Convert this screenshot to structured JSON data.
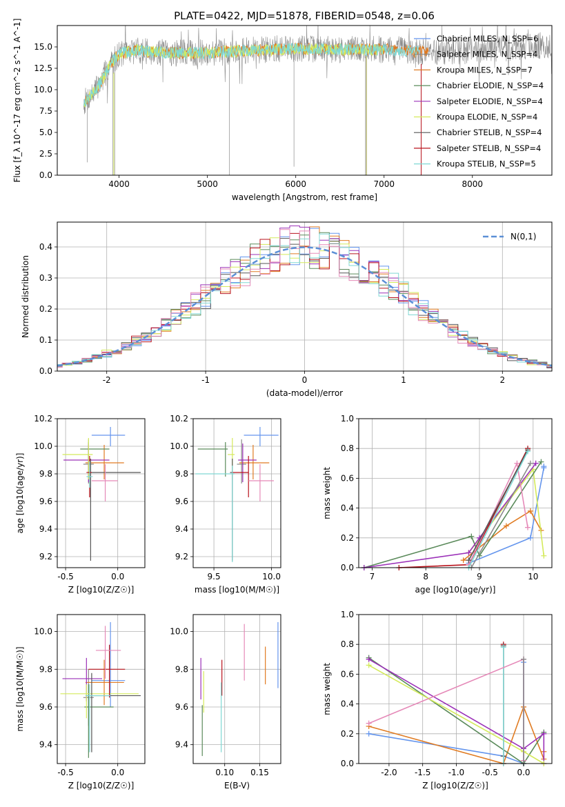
{
  "figure_title": "PLATE=0422, MJD=51878, FIBERID=0548, z=0.06",
  "colors": {
    "chabrier_miles": "#6495ed",
    "salpeter_miles": "#8a8a8a",
    "kroupa_miles": "#e07b22",
    "chabrier_elodie": "#5a8a5a",
    "salpeter_elodie": "#9b30b8",
    "kroupa_elodie": "#d4ea5a",
    "chabrier_stelib": "#555555",
    "salpeter_stelib": "#b8121b",
    "kroupa_stelib": "#7fd8d4",
    "pink": "#e589b8",
    "normal_curve": "#5b8fd6",
    "grid": "#b0b0b0"
  },
  "chart_data": [
    {
      "id": "spectrum",
      "type": "line",
      "title": "PLATE=0422, MJD=51878, FIBERID=0548, z=0.06",
      "xlabel": "wavelength [Angstrom, rest frame]",
      "ylabel": "Flux [f_λ 10^-17 erg cm^-2 s^-1 A^-1]",
      "xlim": [
        3300,
        8900
      ],
      "ylim": [
        0,
        17.5
      ],
      "xticks": [
        4000,
        5000,
        6000,
        7000,
        8000
      ],
      "yticks": [
        0.0,
        2.5,
        5.0,
        7.5,
        10.0,
        12.5,
        15.0
      ],
      "legend": "top-right",
      "grid": false,
      "series": [
        {
          "name": "Chabrier MILES, N_SSP=6",
          "key": "chabrier_miles"
        },
        {
          "name": "Salpeter MILES, N_SSP=4",
          "key": "salpeter_miles"
        },
        {
          "name": "Kroupa MILES, N_SSP=7",
          "key": "kroupa_miles"
        },
        {
          "name": "Chabrier ELODIE, N_SSP=4",
          "key": "chabrier_elodie"
        },
        {
          "name": "Salpeter ELODIE, N_SSP=4",
          "key": "salpeter_elodie"
        },
        {
          "name": "Kroupa ELODIE, N_SSP=4",
          "key": "kroupa_elodie"
        },
        {
          "name": "Chabrier STELIB, N_SSP=4",
          "key": "chabrier_stelib"
        },
        {
          "name": "Salpeter STELIB, N_SSP=4",
          "key": "salpeter_stelib"
        },
        {
          "name": "Kroupa STELIB, N_SSP=5",
          "key": "kroupa_stelib"
        }
      ],
      "continuum": {
        "x": [
          3600,
          3700,
          3800,
          3900,
          4000,
          4200,
          4500,
          5000,
          5500,
          6000,
          6500,
          7000,
          7500,
          8000,
          8500,
          8900
        ],
        "y": [
          8.5,
          9.5,
          11.0,
          13.0,
          14.2,
          14.6,
          14.3,
          14.3,
          14.6,
          14.8,
          14.7,
          14.7,
          14.4,
          14.6,
          15.0,
          15.2
        ]
      }
    },
    {
      "id": "residuals",
      "type": "histogram",
      "xlabel": "(data-model)/error",
      "ylabel": "Normed distribution",
      "xlim": [
        -2.5,
        2.5
      ],
      "ylim": [
        0,
        0.48
      ],
      "xticks": [
        -2,
        -1,
        0,
        1,
        2
      ],
      "yticks": [
        0.0,
        0.1,
        0.2,
        0.3,
        0.4
      ],
      "legend": "top-right",
      "legend_label": "N(0,1)",
      "grid": true
    },
    {
      "id": "z_age",
      "type": "errorbar",
      "xlabel": "Z [log10(Z/Z☉)]",
      "ylabel": "age [log10(age/yr)]",
      "xlim": [
        -0.58,
        0.26
      ],
      "ylim": [
        9.12,
        10.2
      ],
      "xticks": [
        -0.5,
        0.0
      ],
      "yticks": [
        9.2,
        9.4,
        9.6,
        9.8,
        10.0,
        10.2
      ],
      "grid": true,
      "points": [
        {
          "key": "chabrier_miles",
          "x": -0.07,
          "xerr": [
            0.18,
            0.14
          ],
          "y": 10.08,
          "yerr": [
            0.08,
            0.06
          ]
        },
        {
          "key": "salpeter_miles",
          "x": -0.28,
          "xerr": [
            0.05,
            0.05
          ],
          "y": 9.87,
          "yerr": [
            0.14,
            0.18
          ]
        },
        {
          "key": "kroupa_miles",
          "x": -0.13,
          "xerr": [
            0.18,
            0.19
          ],
          "y": 9.88,
          "yerr": [
            0.12,
            0.13
          ]
        },
        {
          "key": "chabrier_elodie",
          "x": -0.28,
          "xerr": [
            0.08,
            0.2
          ],
          "y": 9.98,
          "yerr": [
            0.2,
            0.05
          ]
        },
        {
          "key": "salpeter_elodie",
          "x": -0.28,
          "xerr": [
            0.24,
            0.2
          ],
          "y": 9.9,
          "yerr": [
            0.16,
            0.12
          ]
        },
        {
          "key": "kroupa_elodie",
          "x": -0.28,
          "xerr": [
            0.25,
            0.04
          ],
          "y": 9.94,
          "yerr": [
            0.18,
            0.12
          ]
        },
        {
          "key": "chabrier_stelib",
          "x": -0.26,
          "xerr": [
            0.02,
            0.48
          ],
          "y": 9.81,
          "yerr": [
            0.64,
            0.1
          ]
        },
        {
          "key": "salpeter_stelib",
          "x": -0.27,
          "xerr": [
            0.03,
            0.02
          ],
          "y": 9.81,
          "yerr": [
            0.18,
            0.12
          ]
        },
        {
          "key": "kroupa_stelib",
          "x": -0.27,
          "xerr": [
            0.03,
            0.03
          ],
          "y": 9.78,
          "yerr": [
            0.08,
            0.11
          ]
        },
        {
          "key": "pink",
          "x": -0.12,
          "xerr": [
            0.13,
            0.12
          ],
          "y": 9.75,
          "yerr": [
            0.15,
            0.12
          ]
        }
      ]
    },
    {
      "id": "mass_age",
      "type": "errorbar",
      "xlabel": "mass [log10(M/M☉)]",
      "ylabel": "",
      "xlim": [
        9.32,
        10.08
      ],
      "ylim": [
        9.12,
        10.2
      ],
      "xticks": [
        9.5,
        10.0
      ],
      "yticks": [
        9.2,
        9.4,
        9.6,
        9.8,
        10.0,
        10.2
      ],
      "grid": true,
      "points": [
        {
          "key": "chabrier_miles",
          "x": 9.9,
          "xerr": [
            0.14,
            0.16
          ],
          "y": 10.08,
          "yerr": [
            0.08,
            0.06
          ]
        },
        {
          "key": "salpeter_miles",
          "x": 9.74,
          "xerr": [
            0.04,
            0.04
          ],
          "y": 9.87,
          "yerr": [
            0.14,
            0.18
          ]
        },
        {
          "key": "kroupa_miles",
          "x": 9.84,
          "xerr": [
            0.12,
            0.14
          ],
          "y": 9.88,
          "yerr": [
            0.12,
            0.13
          ]
        },
        {
          "key": "chabrier_elodie",
          "x": 9.6,
          "xerr": [
            0.24,
            0.02
          ],
          "y": 9.98,
          "yerr": [
            0.2,
            0.05
          ]
        },
        {
          "key": "salpeter_elodie",
          "x": 9.75,
          "xerr": [
            0.04,
            0.12
          ],
          "y": 9.9,
          "yerr": [
            0.16,
            0.12
          ]
        },
        {
          "key": "kroupa_elodie",
          "x": 9.66,
          "xerr": [
            0.04,
            0.02
          ],
          "y": 9.94,
          "yerr": [
            0.18,
            0.12
          ]
        },
        {
          "key": "chabrier_stelib",
          "x": 9.66,
          "xerr": [
            0.02,
            0.0
          ],
          "y": 9.81,
          "yerr": [
            0.64,
            0.1
          ]
        },
        {
          "key": "salpeter_stelib",
          "x": 9.8,
          "xerr": [
            0.14,
            0.0
          ],
          "y": 9.81,
          "yerr": [
            0.18,
            0.12
          ]
        },
        {
          "key": "kroupa_stelib",
          "x": 9.66,
          "xerr": [
            0.32,
            0.02
          ],
          "y": 9.8,
          "yerr": [
            0.64,
            0.06
          ]
        },
        {
          "key": "pink",
          "x": 9.9,
          "xerr": [
            0.1,
            0.12
          ],
          "y": 9.75,
          "yerr": [
            0.15,
            0.12
          ]
        }
      ]
    },
    {
      "id": "age_weight",
      "type": "line",
      "xlabel": "age [log10(age/yr)]",
      "ylabel": "mass weight",
      "xlim": [
        6.75,
        10.35
      ],
      "ylim": [
        0,
        1.0
      ],
      "xticks": [
        7,
        8,
        9,
        10
      ],
      "yticks": [
        0.0,
        0.2,
        0.4,
        0.6,
        0.8,
        1.0
      ],
      "grid": true,
      "series": [
        {
          "key": "chabrier_miles",
          "x": [
            8.8,
            9.95,
            10.2,
            10.2
          ],
          "y": [
            0.03,
            0.2,
            0.67,
            0.68
          ]
        },
        {
          "key": "kroupa_miles",
          "x": [
            8.7,
            9.5,
            9.95,
            10.15
          ],
          "y": [
            0.05,
            0.28,
            0.38,
            0.25
          ]
        },
        {
          "key": "kroupa_elodie",
          "x": [
            8.8,
            10.0,
            10.2
          ],
          "y": [
            0.1,
            0.66,
            0.08
          ]
        },
        {
          "key": "chabrier_elodie",
          "x": [
            6.85,
            8.85,
            9.0,
            10.15
          ],
          "y": [
            0.0,
            0.21,
            0.08,
            0.71
          ]
        },
        {
          "key": "salpeter_elodie",
          "x": [
            6.85,
            8.8,
            9.0,
            10.05
          ],
          "y": [
            0.0,
            0.1,
            0.2,
            0.7
          ]
        },
        {
          "key": "salpeter_stelib",
          "x": [
            7.5,
            8.8,
            9.9
          ],
          "y": [
            0.0,
            0.02,
            0.8
          ]
        },
        {
          "key": "pink",
          "x": [
            8.8,
            9.7,
            9.9
          ],
          "y": [
            0.02,
            0.7,
            0.27
          ]
        },
        {
          "key": "chabrier_stelib",
          "x": [
            8.8,
            9.9
          ],
          "y": [
            0.05,
            0.79
          ]
        },
        {
          "key": "kroupa_stelib",
          "x": [
            8.8,
            9.9
          ],
          "y": [
            0.0,
            0.78
          ]
        },
        {
          "key": "salpeter_miles",
          "x": [
            8.85,
            9.95
          ],
          "y": [
            0.0,
            0.7
          ]
        }
      ]
    },
    {
      "id": "z_mass",
      "type": "errorbar",
      "xlabel": "Z [log10(Z/Z☉)]",
      "ylabel": "mass [log10(M/M☉)]",
      "xlim": [
        -0.58,
        0.26
      ],
      "ylim": [
        9.3,
        10.09
      ],
      "xticks": [
        -0.5,
        0.0
      ],
      "yticks": [
        9.4,
        9.6,
        9.8,
        10.0
      ],
      "grid": true,
      "points": [
        {
          "key": "chabrier_miles",
          "x": -0.07,
          "xerr": [
            0.18,
            0.14
          ],
          "y": 9.74,
          "yerr": [
            0.14,
            0.31
          ]
        },
        {
          "key": "salpeter_miles",
          "x": -0.28,
          "xerr": [
            0.05,
            0.05
          ],
          "y": 9.65,
          "yerr": [
            0.15,
            0.15
          ]
        },
        {
          "key": "kroupa_miles",
          "x": -0.13,
          "xerr": [
            0.18,
            0.19
          ],
          "y": 9.73,
          "yerr": [
            0.12,
            0.12
          ]
        },
        {
          "key": "chabrier_elodie",
          "x": -0.28,
          "xerr": [
            0.04,
            0.24
          ],
          "y": 9.6,
          "yerr": [
            0.27,
            0.12
          ]
        },
        {
          "key": "salpeter_elodie",
          "x": -0.3,
          "xerr": [
            0.23,
            0.15
          ],
          "y": 9.75,
          "yerr": [
            0.12,
            0.11
          ]
        },
        {
          "key": "kroupa_elodie",
          "x": -0.3,
          "xerr": [
            0.25,
            0.5
          ],
          "y": 9.67,
          "yerr": [
            0.13,
            0.05
          ]
        },
        {
          "key": "chabrier_stelib",
          "x": -0.25,
          "xerr": [
            0.05,
            0.47
          ],
          "y": 9.66,
          "yerr": [
            0.3,
            0.12
          ]
        },
        {
          "key": "salpeter_stelib",
          "x": -0.08,
          "xerr": [
            0.2,
            0.15
          ],
          "y": 9.8,
          "yerr": [
            0.15,
            0.13
          ]
        },
        {
          "key": "kroupa_stelib",
          "x": -0.27,
          "xerr": [
            0.04,
            0.2
          ],
          "y": 9.66,
          "yerr": [
            0.3,
            0.06
          ]
        },
        {
          "key": "pink",
          "x": -0.12,
          "xerr": [
            0.09,
            0.15
          ],
          "y": 9.9,
          "yerr": [
            0.15,
            0.13
          ]
        }
      ]
    },
    {
      "id": "ebv_mass",
      "type": "errorbar",
      "xlabel": "E(B-V)",
      "ylabel": "",
      "xlim": [
        0.055,
        0.18
      ],
      "ylim": [
        9.3,
        10.09
      ],
      "xticks": [
        0.1,
        0.15
      ],
      "yticks": [
        9.4,
        9.6,
        9.8,
        10.0
      ],
      "grid": true,
      "points": [
        {
          "key": "chabrier_miles",
          "x": 0.176,
          "y": 9.88,
          "yerr": [
            0.18,
            0.17
          ]
        },
        {
          "key": "kroupa_miles",
          "x": 0.158,
          "y": 9.82,
          "yerr": [
            0.1,
            0.1
          ]
        },
        {
          "key": "pink",
          "x": 0.128,
          "y": 9.89,
          "yerr": [
            0.15,
            0.15
          ]
        },
        {
          "key": "salpeter_stelib",
          "x": 0.096,
          "y": 9.76,
          "yerr": [
            0.1,
            0.09
          ]
        },
        {
          "key": "kroupa_stelib",
          "x": 0.095,
          "y": 9.55,
          "yerr": [
            0.19,
            0.18
          ]
        },
        {
          "key": "kroupa_elodie",
          "x": 0.07,
          "y": 9.68,
          "yerr": [
            0.11,
            0.11
          ]
        },
        {
          "key": "chabrier_elodie",
          "x": 0.068,
          "y": 9.47,
          "yerr": [
            0.13,
            0.14
          ]
        },
        {
          "key": "salpeter_elodie",
          "x": 0.066,
          "y": 9.75,
          "yerr": [
            0.11,
            0.11
          ]
        }
      ]
    },
    {
      "id": "z_weight",
      "type": "line",
      "xlabel": "Z [log10(Z/Z☉)]",
      "ylabel": "mass weight",
      "xlim": [
        -2.45,
        0.42
      ],
      "ylim": [
        0,
        1.0
      ],
      "xticks": [
        -2.0,
        -1.5,
        -1.0,
        -0.5,
        0.0
      ],
      "yticks": [
        0.0,
        0.2,
        0.4,
        0.6,
        0.8,
        1.0
      ],
      "grid": true,
      "series": [
        {
          "key": "chabrier_miles",
          "x": [
            -2.3,
            -0.3,
            0.0,
            0.0
          ],
          "y": [
            0.2,
            0.05,
            0.0,
            0.68
          ]
        },
        {
          "key": "kroupa_miles",
          "x": [
            -2.3,
            -0.3,
            0.0,
            0.3,
            0.3
          ],
          "y": [
            0.25,
            0.0,
            0.38,
            0.03,
            0.08
          ]
        },
        {
          "key": "chabrier_elodie",
          "x": [
            -2.3,
            0.0,
            0.3
          ],
          "y": [
            0.71,
            0.0,
            0.21
          ]
        },
        {
          "key": "salpeter_elodie",
          "x": [
            -2.3,
            0.0,
            0.3,
            0.3
          ],
          "y": [
            0.7,
            0.1,
            0.2,
            0.0
          ]
        },
        {
          "key": "kroupa_elodie",
          "x": [
            -2.3,
            0.0,
            0.3
          ],
          "y": [
            0.66,
            0.08,
            0.0
          ]
        },
        {
          "key": "salpeter_stelib",
          "x": [
            -0.3,
            -0.3
          ],
          "y": [
            0.8,
            0.0
          ]
        },
        {
          "key": "chabrier_stelib",
          "x": [
            -0.3,
            -0.3
          ],
          "y": [
            0.79,
            0.05
          ]
        },
        {
          "key": "kroupa_stelib",
          "x": [
            -0.3,
            -0.3
          ],
          "y": [
            0.78,
            0.0
          ]
        },
        {
          "key": "pink",
          "x": [
            -2.3,
            0.0,
            0.0
          ],
          "y": [
            0.27,
            0.7,
            0.02
          ]
        },
        {
          "key": "salpeter_miles",
          "x": [
            0.0,
            0.0
          ],
          "y": [
            0.7,
            0.0
          ]
        }
      ]
    }
  ]
}
